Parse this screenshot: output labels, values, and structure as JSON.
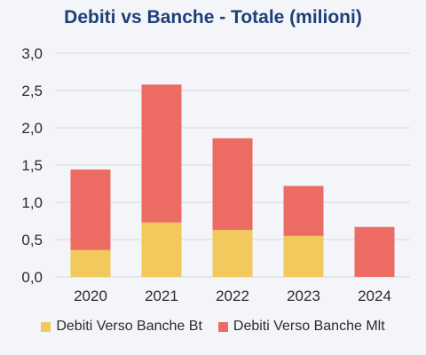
{
  "chart_data": {
    "type": "bar",
    "stacked": true,
    "title": "Debiti vs Banche - Totale (milioni)",
    "xlabel": "",
    "ylabel": "",
    "categories": [
      "2020",
      "2021",
      "2022",
      "2023",
      "2024"
    ],
    "series": [
      {
        "name": "Debiti Verso Banche Bt",
        "color": "#f2c95c",
        "values": [
          0.36,
          0.73,
          0.63,
          0.55,
          0.0
        ]
      },
      {
        "name": "Debiti Verso Banche Mlt",
        "color": "#ec6b63",
        "values": [
          1.08,
          1.85,
          1.23,
          0.67,
          0.67
        ]
      }
    ],
    "ylim": [
      0,
      3.0
    ],
    "yticks": [
      "0,0",
      "0,5",
      "1,0",
      "1,5",
      "2,0",
      "2,5",
      "3,0"
    ],
    "grid": true,
    "legend_position": "bottom"
  }
}
